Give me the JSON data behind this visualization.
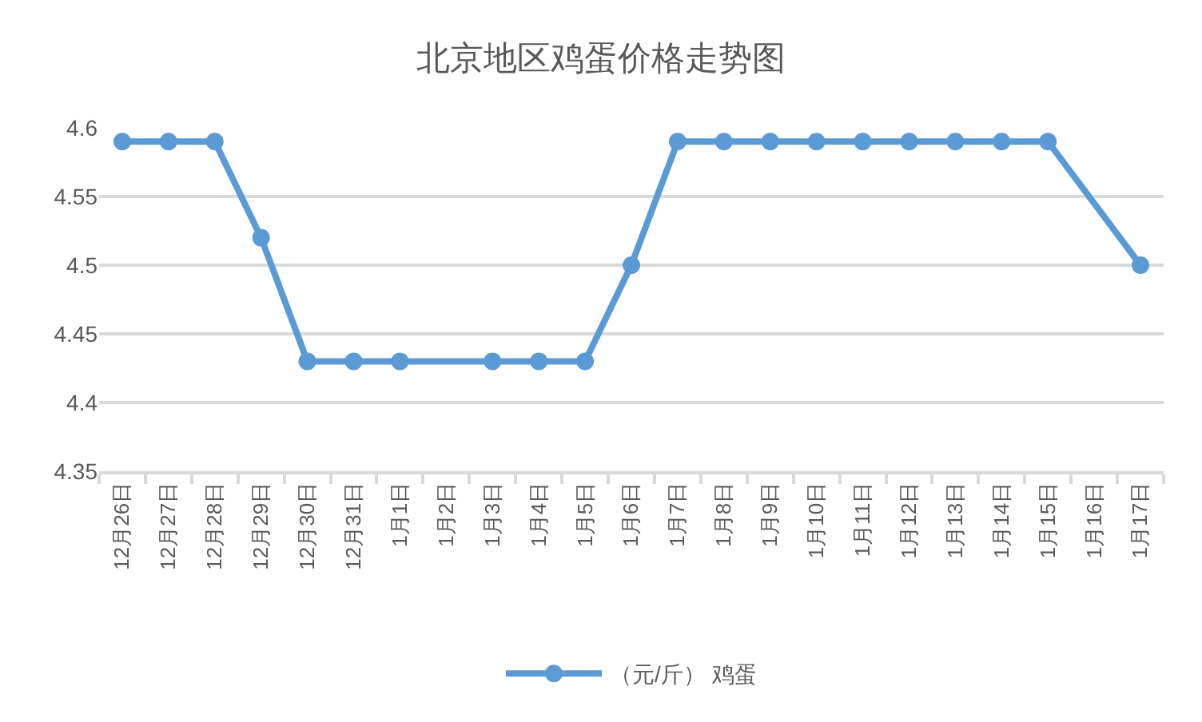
{
  "chart_data": {
    "type": "line",
    "title": "北京地区鸡蛋价格走势图",
    "categories": [
      "12月26日",
      "12月27日",
      "12月28日",
      "12月29日",
      "12月30日",
      "12月31日",
      "1月1日",
      "1月2日",
      "1月3日",
      "1月4日",
      "1月5日",
      "1月6日",
      "1月7日",
      "1月8日",
      "1月9日",
      "1月10日",
      "1月11日",
      "1月12日",
      "1月13日",
      "1月14日",
      "1月15日",
      "1月16日",
      "1月17日"
    ],
    "series": [
      {
        "name": "（元/斤） 鸡蛋",
        "color": "#5b9bd5",
        "values": [
          4.59,
          4.59,
          4.59,
          4.52,
          4.43,
          4.43,
          4.43,
          null,
          4.43,
          4.43,
          4.43,
          4.5,
          4.59,
          4.59,
          4.59,
          4.59,
          4.59,
          4.59,
          4.59,
          4.59,
          4.59,
          null,
          4.5
        ]
      }
    ],
    "ylim": [
      4.35,
      4.6
    ],
    "yticks": [
      4.35,
      4.4,
      4.45,
      4.5,
      4.55,
      4.6
    ],
    "grid": "y",
    "legend": "bottom",
    "marker": "circle",
    "line_style": "solid"
  }
}
